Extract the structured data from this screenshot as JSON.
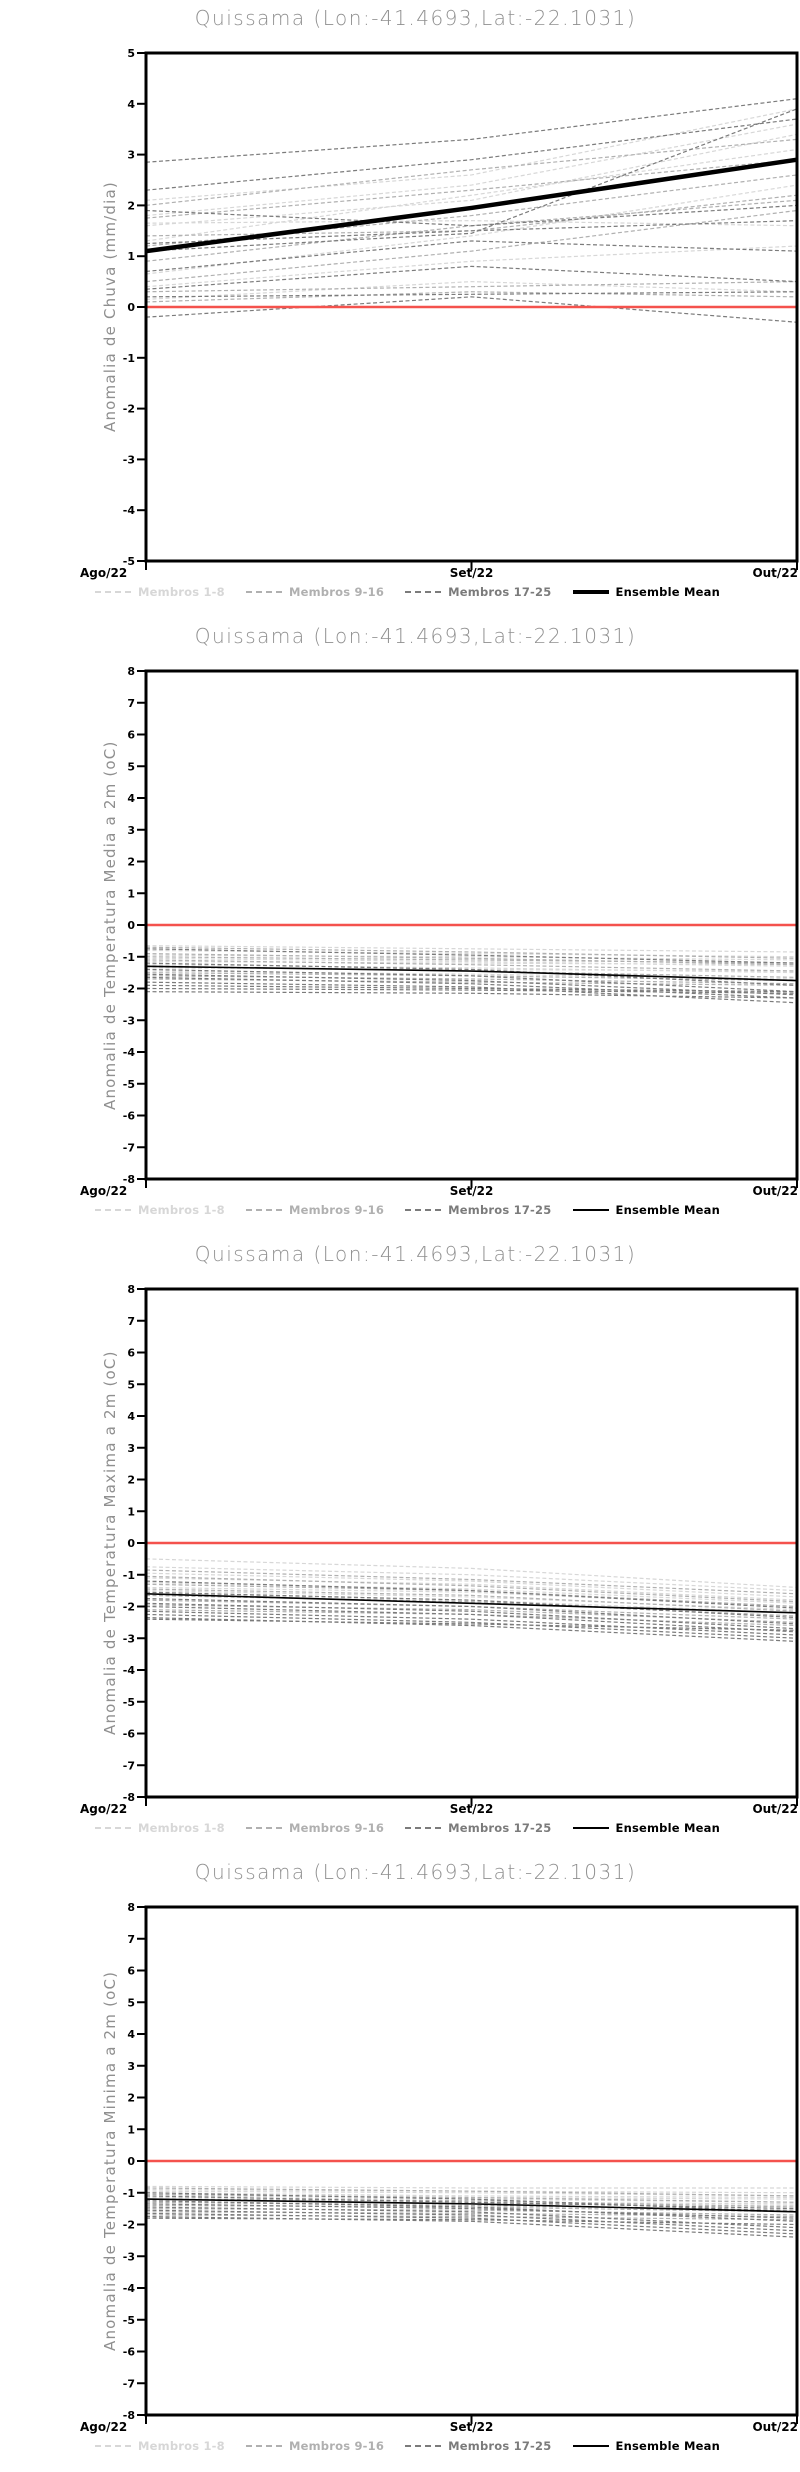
{
  "chart_data": [
    {
      "type": "line",
      "title": "Quissama (Lon:-41.4693,Lat:-22.1031)",
      "ylabel": "Anomalia de Chuva (mm/dia)",
      "x_labels": [
        "Ago/22",
        "Set/22",
        "Out/22"
      ],
      "ylim": [
        -5,
        5
      ],
      "yticks": [
        5,
        4,
        3,
        2,
        1,
        0,
        -1,
        -2,
        -3,
        -4,
        -5
      ],
      "grid": false,
      "zero_line": {
        "name": "zero-reference",
        "color": "#f4524d",
        "width": 2.6,
        "values": [
          0,
          0,
          0
        ]
      },
      "groups": [
        {
          "name": "Membros 1-8",
          "color": "#d7d7d7",
          "style": "dashed",
          "members": [
            [
              1.6,
              2.1,
              3.4
            ],
            [
              0.4,
              0.9,
              1.2
            ],
            [
              2.1,
              2.6,
              3.9
            ],
            [
              1.8,
              2.4,
              3.6
            ],
            [
              0.15,
              0.5,
              0.3
            ],
            [
              1.3,
              2.2,
              3.1
            ],
            [
              0.65,
              1.4,
              2.4
            ],
            [
              1.65,
              1.7,
              1.6
            ]
          ]
        },
        {
          "name": "Membros 9-16",
          "color": "#b0b0b0",
          "style": "dashed",
          "members": [
            [
              0.9,
              1.6,
              2.1
            ],
            [
              2.0,
              2.7,
              3.3
            ],
            [
              0.3,
              0.4,
              0.5
            ],
            [
              1.2,
              1.8,
              2.6
            ],
            [
              0.1,
              0.3,
              0.2
            ],
            [
              1.75,
              2.3,
              2.9
            ],
            [
              0.5,
              1.1,
              1.9
            ],
            [
              1.4,
              1.5,
              2.2
            ]
          ]
        },
        {
          "name": "Membros 17-25",
          "color": "#7b7b7b",
          "style": "dashed",
          "members": [
            [
              2.85,
              3.3,
              4.1
            ],
            [
              2.3,
              2.9,
              3.7
            ],
            [
              1.25,
              1.5,
              1.7
            ],
            [
              0.2,
              0.25,
              0.3
            ],
            [
              -0.2,
              0.2,
              -0.3
            ],
            [
              0.7,
              1.3,
              1.1
            ],
            [
              1.1,
              1.45,
              3.9
            ],
            [
              0.35,
              0.8,
              0.5
            ],
            [
              1.9,
              1.6,
              2.0
            ]
          ]
        }
      ],
      "ensemble_mean": {
        "name": "Ensemble Mean",
        "color": "#000000",
        "width": 4.5,
        "values": [
          1.1,
          1.95,
          2.9
        ]
      },
      "legend": [
        {
          "label": "Membros 1-8",
          "color": "#d7d7d7",
          "style": "dashed",
          "weight": 2
        },
        {
          "label": "Membros 9-16",
          "color": "#b0b0b0",
          "style": "dashed",
          "weight": 2
        },
        {
          "label": "Membros 17-25",
          "color": "#7b7b7b",
          "style": "dashed",
          "weight": 2
        },
        {
          "label": "Ensemble Mean",
          "color": "#000000",
          "style": "solid",
          "weight": 4
        }
      ]
    },
    {
      "type": "line",
      "title": "Quissama (Lon:-41.4693,Lat:-22.1031)",
      "ylabel": "Anomalia de Temperatura Media a 2m (oC)",
      "x_labels": [
        "Ago/22",
        "Set/22",
        "Out/22"
      ],
      "ylim": [
        -8,
        8
      ],
      "yticks": [
        8,
        7,
        6,
        5,
        4,
        3,
        2,
        1,
        0,
        -1,
        -2,
        -3,
        -4,
        -5,
        -6,
        -7,
        -8
      ],
      "grid": false,
      "zero_line": {
        "name": "zero-reference",
        "color": "#f4524d",
        "width": 2.6,
        "values": [
          0,
          0,
          0
        ]
      },
      "groups": [
        {
          "name": "Membros 1-8",
          "color": "#d7d7d7",
          "style": "dashed",
          "members": [
            [
              -0.65,
              -0.75,
              -0.85
            ],
            [
              -0.8,
              -0.9,
              -1.0
            ],
            [
              -0.95,
              -1.0,
              -1.1
            ],
            [
              -1.05,
              -1.15,
              -1.3
            ],
            [
              -1.15,
              -1.2,
              -1.25
            ],
            [
              -1.25,
              -1.35,
              -1.5
            ],
            [
              -1.35,
              -1.4,
              -1.45
            ],
            [
              -1.45,
              -1.55,
              -1.7
            ]
          ]
        },
        {
          "name": "Membros 9-16",
          "color": "#b0b0b0",
          "style": "dashed",
          "members": [
            [
              -0.7,
              -0.85,
              -1.05
            ],
            [
              -0.9,
              -1.05,
              -1.25
            ],
            [
              -1.0,
              -1.1,
              -1.2
            ],
            [
              -1.1,
              -1.25,
              -1.45
            ],
            [
              -1.3,
              -1.45,
              -1.65
            ],
            [
              -1.5,
              -1.6,
              -1.75
            ],
            [
              -1.6,
              -1.7,
              -1.85
            ],
            [
              -1.7,
              -1.8,
              -1.9
            ]
          ]
        },
        {
          "name": "Membros 17-25",
          "color": "#7b7b7b",
          "style": "dashed",
          "members": [
            [
              -0.75,
              -0.95,
              -1.2
            ],
            [
              -1.2,
              -1.4,
              -1.9
            ],
            [
              -1.4,
              -1.6,
              -2.1
            ],
            [
              -1.55,
              -1.75,
              -2.2
            ],
            [
              -1.65,
              -1.85,
              -2.3
            ],
            [
              -1.8,
              -1.95,
              -2.45
            ],
            [
              -1.9,
              -2.0,
              -2.1
            ],
            [
              -2.0,
              -2.05,
              -2.15
            ],
            [
              -2.1,
              -2.15,
              -2.3
            ]
          ]
        }
      ],
      "ensemble_mean": {
        "name": "Ensemble Mean",
        "color": "#000000",
        "width": 1.6,
        "values": [
          -1.3,
          -1.45,
          -1.75
        ]
      },
      "legend": [
        {
          "label": "Membros 1-8",
          "color": "#d7d7d7",
          "style": "dashed",
          "weight": 2
        },
        {
          "label": "Membros 9-16",
          "color": "#b0b0b0",
          "style": "dashed",
          "weight": 2
        },
        {
          "label": "Membros 17-25",
          "color": "#7b7b7b",
          "style": "dashed",
          "weight": 2
        },
        {
          "label": "Ensemble Mean",
          "color": "#000000",
          "style": "solid",
          "weight": 2
        }
      ]
    },
    {
      "type": "line",
      "title": "Quissama (Lon:-41.4693,Lat:-22.1031)",
      "ylabel": "Anomalia de Temperatura Maxima a 2m (oC)",
      "x_labels": [
        "Ago/22",
        "Set/22",
        "Out/22"
      ],
      "ylim": [
        -8,
        8
      ],
      "yticks": [
        8,
        7,
        6,
        5,
        4,
        3,
        2,
        1,
        0,
        -1,
        -2,
        -3,
        -4,
        -5,
        -6,
        -7,
        -8
      ],
      "grid": false,
      "zero_line": {
        "name": "zero-reference",
        "color": "#f4524d",
        "width": 2.6,
        "values": [
          0,
          0,
          0
        ]
      },
      "groups": [
        {
          "name": "Membros 1-8",
          "color": "#d7d7d7",
          "style": "dashed",
          "members": [
            [
              -0.5,
              -0.8,
              -1.4
            ],
            [
              -0.75,
              -1.0,
              -1.5
            ],
            [
              -0.95,
              -1.2,
              -1.7
            ],
            [
              -1.1,
              -1.3,
              -1.8
            ],
            [
              -1.25,
              -1.45,
              -1.9
            ],
            [
              -1.4,
              -1.55,
              -2.0
            ],
            [
              -1.5,
              -1.7,
              -2.1
            ],
            [
              -1.6,
              -1.8,
              -2.2
            ]
          ]
        },
        {
          "name": "Membros 9-16",
          "color": "#b0b0b0",
          "style": "dashed",
          "members": [
            [
              -0.85,
              -1.15,
              -1.6
            ],
            [
              -1.05,
              -1.35,
              -1.85
            ],
            [
              -1.3,
              -1.5,
              -2.0
            ],
            [
              -1.45,
              -1.65,
              -2.15
            ],
            [
              -1.65,
              -1.85,
              -2.3
            ],
            [
              -1.8,
              -2.0,
              -2.4
            ],
            [
              -1.95,
              -2.1,
              -2.5
            ],
            [
              -2.1,
              -2.25,
              -2.6
            ]
          ]
        },
        {
          "name": "Membros 17-25",
          "color": "#7b7b7b",
          "style": "dashed",
          "members": [
            [
              -1.2,
              -1.5,
              -2.05
            ],
            [
              -1.55,
              -1.8,
              -2.35
            ],
            [
              -1.75,
              -2.0,
              -2.55
            ],
            [
              -1.9,
              -2.15,
              -2.7
            ],
            [
              -2.0,
              -2.25,
              -2.8
            ],
            [
              -2.15,
              -2.4,
              -2.9
            ],
            [
              -2.25,
              -2.5,
              -3.0
            ],
            [
              -2.35,
              -2.6,
              -3.1
            ],
            [
              -2.4,
              -2.55,
              -2.75
            ]
          ]
        }
      ],
      "ensemble_mean": {
        "name": "Ensemble Mean",
        "color": "#000000",
        "width": 1.6,
        "values": [
          -1.6,
          -1.9,
          -2.2
        ]
      },
      "legend": [
        {
          "label": "Membros 1-8",
          "color": "#d7d7d7",
          "style": "dashed",
          "weight": 2
        },
        {
          "label": "Membros 9-16",
          "color": "#b0b0b0",
          "style": "dashed",
          "weight": 2
        },
        {
          "label": "Membros 17-25",
          "color": "#7b7b7b",
          "style": "dashed",
          "weight": 2
        },
        {
          "label": "Ensemble Mean",
          "color": "#000000",
          "style": "solid",
          "weight": 2
        }
      ]
    },
    {
      "type": "line",
      "title": "Quissama (Lon:-41.4693,Lat:-22.1031)",
      "ylabel": "Anomalia de Temperatura Minima a 2m (oC)",
      "x_labels": [
        "Ago/22",
        "Set/22",
        "Out/22"
      ],
      "ylim": [
        -8,
        8
      ],
      "yticks": [
        8,
        7,
        6,
        5,
        4,
        3,
        2,
        1,
        0,
        -1,
        -2,
        -3,
        -4,
        -5,
        -6,
        -7,
        -8
      ],
      "grid": false,
      "zero_line": {
        "name": "zero-reference",
        "color": "#f4524d",
        "width": 2.6,
        "values": [
          0,
          0,
          0
        ]
      },
      "groups": [
        {
          "name": "Membros 1-8",
          "color": "#d7d7d7",
          "style": "dashed",
          "members": [
            [
              -0.8,
              -0.85,
              -0.85
            ],
            [
              -0.9,
              -0.95,
              -1.0
            ],
            [
              -0.95,
              -1.0,
              -1.1
            ],
            [
              -1.0,
              -1.1,
              -1.15
            ],
            [
              -1.1,
              -1.15,
              -1.2
            ],
            [
              -1.15,
              -1.2,
              -1.3
            ],
            [
              -1.2,
              -1.3,
              -1.35
            ],
            [
              -1.3,
              -1.35,
              -1.4
            ]
          ]
        },
        {
          "name": "Membros 9-16",
          "color": "#b0b0b0",
          "style": "dashed",
          "members": [
            [
              -0.85,
              -0.95,
              -1.1
            ],
            [
              -1.05,
              -1.15,
              -1.3
            ],
            [
              -1.2,
              -1.25,
              -1.45
            ],
            [
              -1.3,
              -1.4,
              -1.55
            ],
            [
              -1.4,
              -1.45,
              -1.6
            ],
            [
              -1.5,
              -1.55,
              -1.7
            ],
            [
              -1.6,
              -1.65,
              -1.75
            ],
            [
              -1.7,
              -1.75,
              -1.85
            ]
          ]
        },
        {
          "name": "Membros 17-25",
          "color": "#7b7b7b",
          "style": "dashed",
          "members": [
            [
              -1.0,
              -1.2,
              -1.6
            ],
            [
              -1.25,
              -1.45,
              -1.9
            ],
            [
              -1.45,
              -1.6,
              -2.1
            ],
            [
              -1.55,
              -1.7,
              -2.2
            ],
            [
              -1.65,
              -1.8,
              -2.3
            ],
            [
              -1.75,
              -1.9,
              -2.4
            ],
            [
              -1.8,
              -1.85,
              -2.0
            ],
            [
              -1.35,
              -1.5,
              -1.8
            ],
            [
              -1.1,
              -1.3,
              -1.5
            ]
          ]
        }
      ],
      "ensemble_mean": {
        "name": "Ensemble Mean",
        "color": "#000000",
        "width": 1.6,
        "values": [
          -1.2,
          -1.35,
          -1.6
        ]
      },
      "legend": [
        {
          "label": "Membros 1-8",
          "color": "#d7d7d7",
          "style": "dashed",
          "weight": 2
        },
        {
          "label": "Membros 9-16",
          "color": "#b0b0b0",
          "style": "dashed",
          "weight": 2
        },
        {
          "label": "Membros 17-25",
          "color": "#7b7b7b",
          "style": "dashed",
          "weight": 2
        },
        {
          "label": "Ensemble Mean",
          "color": "#000000",
          "style": "solid",
          "weight": 2
        }
      ]
    }
  ]
}
